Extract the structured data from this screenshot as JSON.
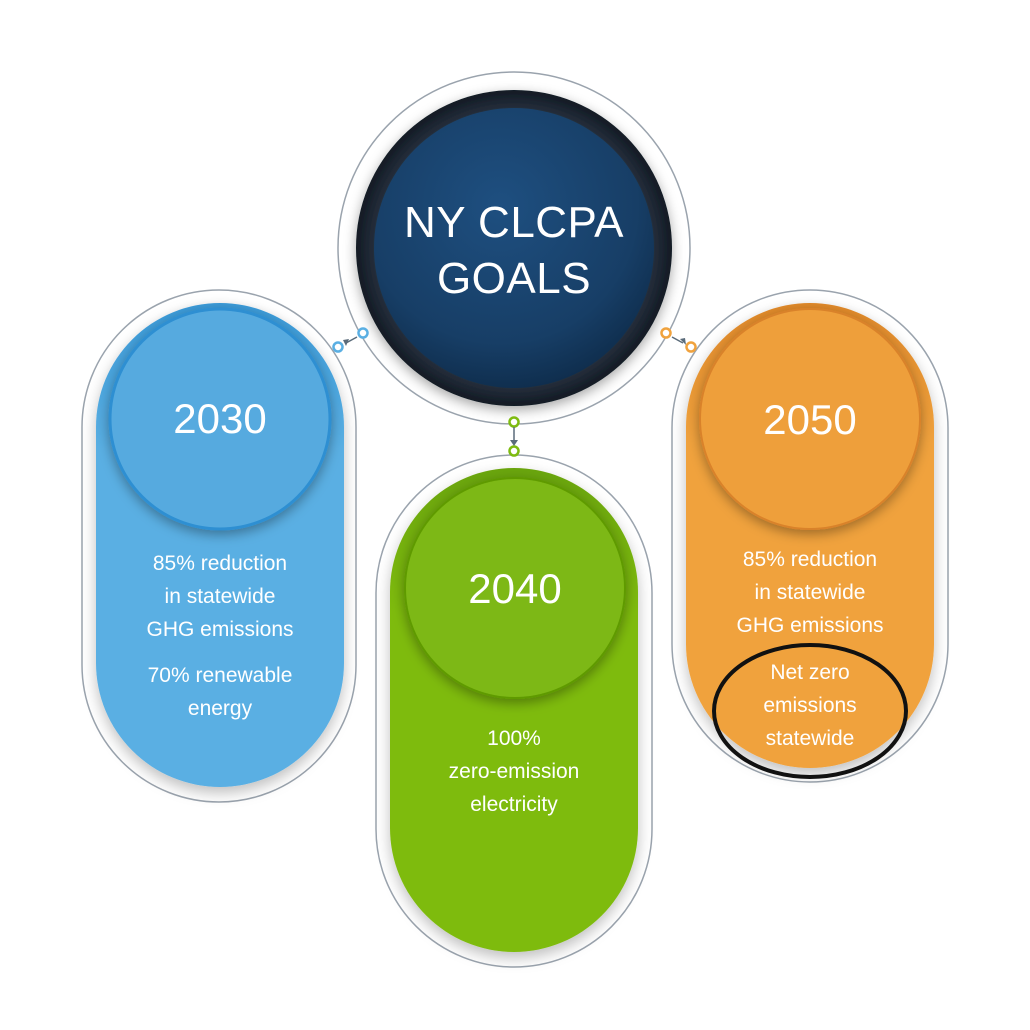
{
  "hub": {
    "title_line1": "NY CLCPA",
    "title_line2": "GOALS",
    "color": "#1b4268"
  },
  "goals": [
    {
      "year": "2030",
      "color": "#5aafe3",
      "lines": [
        "85% reduction",
        "in statewide",
        "GHG emissions"
      ],
      "lines2": [
        "70% renewable",
        "energy"
      ]
    },
    {
      "year": "2040",
      "color": "#7ebb10",
      "lines": [
        "100%",
        "zero-emission",
        "electricity"
      ]
    },
    {
      "year": "2050",
      "color": "#f0a23d",
      "lines": [
        "85% reduction",
        "in statewide",
        "GHG emissions"
      ],
      "lines2": [
        "Net zero",
        "emissions",
        "statewide"
      ],
      "highlight": "circled"
    }
  ]
}
